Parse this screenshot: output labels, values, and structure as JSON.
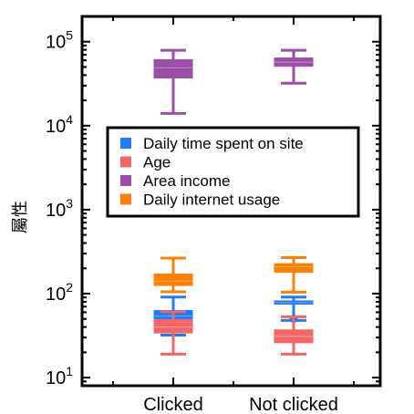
{
  "chart_data": {
    "type": "boxplot",
    "title": "",
    "xlabel": "",
    "ylabel": "屬性",
    "yscale": "log",
    "ylim": [
      8,
      200000
    ],
    "y_ticks": [
      {
        "value": 10,
        "base": "10",
        "exp": "1"
      },
      {
        "value": 100,
        "base": "10",
        "exp": "2"
      },
      {
        "value": 1000,
        "base": "10",
        "exp": "3"
      },
      {
        "value": 10000,
        "base": "10",
        "exp": "4"
      },
      {
        "value": 100000,
        "base": "10",
        "exp": "5"
      }
    ],
    "categories": [
      "Clicked",
      "Not clicked"
    ],
    "legend_position": "center",
    "series": [
      {
        "name": "Daily time spent on site",
        "color": "#1f7bff",
        "boxes": [
          {
            "category": "Clicked",
            "whislo": 32,
            "q1": 49,
            "med": 54,
            "q3": 63,
            "whishi": 91
          },
          {
            "category": "Not clicked",
            "whislo": 48,
            "q1": 75,
            "med": 78,
            "q3": 82,
            "whishi": 91,
            "fliers": [
              50
            ]
          }
        ]
      },
      {
        "name": "Age",
        "color": "#f26666",
        "boxes": [
          {
            "category": "Clicked",
            "whislo": 19,
            "q1": 34,
            "med": 40,
            "q3": 49,
            "whishi": 61
          },
          {
            "category": "Not clicked",
            "whislo": 19,
            "q1": 26,
            "med": 31,
            "q3": 37,
            "whishi": 53
          }
        ]
      },
      {
        "name": "Area income",
        "color": "#9b4fa8",
        "boxes": [
          {
            "category": "Clicked",
            "whislo": 14000,
            "q1": 37000,
            "med": 49000,
            "q3": 61000,
            "whishi": 79000
          },
          {
            "category": "Not clicked",
            "whislo": 32000,
            "q1": 51000,
            "med": 57000,
            "q3": 64000,
            "whishi": 79000
          }
        ]
      },
      {
        "name": "Daily internet usage",
        "color": "#ff8000",
        "boxes": [
          {
            "category": "Clicked",
            "whislo": 105,
            "q1": 125,
            "med": 141,
            "q3": 171,
            "whishi": 265
          },
          {
            "category": "Not clicked",
            "whislo": 104,
            "q1": 180,
            "med": 209,
            "q3": 227,
            "whishi": 268
          }
        ]
      }
    ]
  }
}
